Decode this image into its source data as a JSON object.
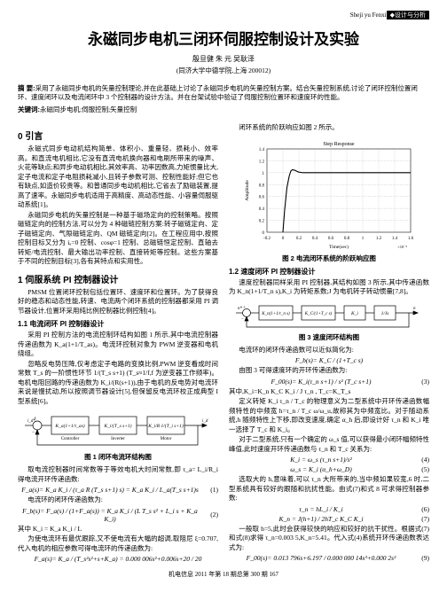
{
  "header_tag": {
    "left": "Sheji yu Fenxi",
    "right": "◆设计与分析"
  },
  "title": "永磁同步电机三闭环伺服控制设计及实验",
  "authors": "殷旦健  朱 元  吴耿泽",
  "affiliation": "(同济大学中德学院,上海 200012)",
  "abstract_label": "摘 要:",
  "abstract_text": "采用了永磁同步电机的矢量控制理论,并在此基础上讨论了永磁同步电机的矢量控制方案。结合矢量控制系统,讨论了闭环控制位置闭环、速度闭环以及电流闭环中 3 个控制器的设计方法。并在台架试验中验证了伺服控制位置环和速度环的性能。",
  "keywords_label": "关键词:",
  "keywords_text": "永磁同步电机;伺服控制;矢量控制",
  "sec0_title": "0 引言",
  "sec0_p1": "永磁式同步电动机结构简单、体积小、重量轻、损耗小、效率高。和直流电机相比,它没有直流电机换向器和电刷所带来的噪声、火花等缺点;和异步电动机相比,其效率高、功率因数高,力矩惯量比大,定子电流和定子电阻损耗减小,且转子参数可测、控制性能好;但它也有缺点,如造价较贵等。和普通同步电动机相比,它省去了励磁装置,提高了速率。永磁同步电机适用于高精度、高动态性能、小容量伺服驱动系统[1]。",
  "sec0_p2": "永磁同步电机的矢量控制是一种基于磁场定向的控制策略。按照磁链定向的控制方法,可以分为 4 种磁链控制方案:转子磁链定向、定子磁链定向、气隙磁链定向、QM 磁链定向[2]。在工程应用中,按照控制目标又分为 iₐ=0 控制、cosφ=1 控制、总磁链恒定控制、直轴去转矩/电流控制、最大输出功率控制、直接转矩等控制。这些方案基于不同的控制目标[3],各有其特点和实用性。",
  "sec1_title": "1 伺服系统 PI 控制器设计",
  "sec1_p1": "PMSM 位置闭环控制包括位置环、速度环和位置环。为了获得良好的稳态和动态性能,转速、电流两个闭环系统的控制器都采用 PI 调节器设计,位置环采用纯比例控制器比例控制[4]。",
  "sec1_1_title": "1.1 电流闭环 PI 控制器设计",
  "sec1_1_p1": "采用 PI 控制方法的电流控制环结构如图 1 所示,其中电流控制器传递函数为 K_a(1+1/T_as)。电流环控制对象为 PWM 逆变器和电机绕组。",
  "sec1_1_p2": "忽略反电势压降,仅考虑定子电路的变换比例,PWM 逆变看成时间常数 T_s 的一阶惯性环节 1/(T_s s+1) (T_s≈1/f,f 为逆变器工作频率)。电机电阻回路的传递函数为 K_i/(R(s+1)),由于电机的反电势对电流环来说是慢扰动,所以按照调节器设计[5],但保留反电流环校正成典型 I 型系统[6]。",
  "fig1_cap": "图 1 闭环电流环结构图",
  "sec1_1_p3": "取电流控制器时间常数等于等效电机大时间常数,即 τ_a= L_i/R_i 得电流开环传递函数:",
  "eq1": "F_a(s)= K_a K_i / (τ_a R (T_s s+1) s) = K_a K_i / L_a(T_s s+1)s",
  "eq1_num": "(1)",
  "sec1_1_p4": "电流环的闭环传递函数为:",
  "eq2": "F_b(s)= F_a(s) / (1+F_a(s)) = K_a K_i / (L T_s s² + L_i s + K_a K_i)",
  "eq2_num": "(2)",
  "sec1_1_p5": "其中 K_i = K_a K_i / L",
  "sec1_1_p6": "为使电流环有最优跟踪,又不使电流有大幅的超调,取阻尼 ξ=0.707,代入电机的相应参数可得电流环的传递函数为:",
  "eq3": "F_a(s)= K_a / (T_s²s²+s+K_a) = 0.000 006s²+0.006s+20 / 20",
  "col2_intro": "闭环系统的阶跃响应如图 2 所示。",
  "fig2_cap": "图 2 电流闭环系统的阶跃响应图",
  "fig2_chart": {
    "type": "line",
    "title_text": "Step Response",
    "xlabel": "Time(sec)",
    "ylabel": "Amplitude",
    "xlim": [
      -0.2,
      1.6
    ],
    "ylim": [
      0,
      1.4
    ],
    "xticks": [
      -0.2,
      0,
      0.2,
      0.4,
      0.6,
      0.8,
      1,
      1.2,
      1.4,
      1.6
    ],
    "yticks": [
      0,
      0.2,
      0.4,
      0.6,
      0.8,
      1,
      1.2,
      1.4
    ],
    "line_color": "#000000",
    "background_color": "#ffffff",
    "grid_color": "#999999",
    "x_data": [
      0,
      0.02,
      0.05,
      0.08,
      0.1,
      0.12,
      0.15,
      0.18,
      0.2,
      0.25,
      0.3,
      0.35,
      0.4,
      0.5,
      0.6,
      0.8,
      1.0,
      1.2,
      1.4,
      1.6
    ],
    "y_data": [
      0,
      0.35,
      0.75,
      0.95,
      1.03,
      1.05,
      1.04,
      1.02,
      1.01,
      1.0,
      1.0,
      1.0,
      1.0,
      1.0,
      1.0,
      1.0,
      1.0,
      1.0,
      1.0,
      1.0
    ]
  },
  "sec1_2_title": "1.2 速度闭环 PI 控制器设计",
  "sec1_2_p1": "速度控制器同样采用 PI 控制器,其结构如图 3 所示,其中传递函数为 K_n(1+1/T_n s),K_i 为转矩系数;J 为电机转子转动惯量[7,8]。",
  "fig3_cap": "图 3 速度闭环结构图",
  "sec1_2_p2": "电流环的闭环传递函数可以近似简化为:",
  "eq4": "F_b(s)= K_C / (1+T_c s)",
  "sec1_2_p3": "由图 3 可得速度环的开环传递函数为:",
  "eq5": "F_00(s)= K_i(τ_n s+1) / s² (T_c s+1)",
  "eq5_num": "(3)",
  "sec1_2_p4": "其中,K_i=K_n K_C K_i / J τ_n , T_c=K_T_s",
  "sec1_2_p5": "定义转矩 K_i τ_n / T_c 的物理意义为二型系统中开环传递函数幅频特性的中频宽 h=τ_n / T_c ω/ω_u,故称其为中频宽比。对于随动系统,h 随频特性上下移,即改变速度,确定 α_h 后,即设计好 τ_n 和 K_i 唯一选择了 T_c 和 K_i。",
  "sec1_2_p6": "对于二型系统,只有一个确定的 ω_s 值,可以获得最小闭环幅频特性峰值,此时速度开环传递函数与 τ_n 和 T_c 关系为:",
  "eq6": "K_i = ω_s (τ_n s+1)/s²",
  "eq6_num": "(4)",
  "eq6b": "ω_s = K_i (α_h+ω_D)",
  "eq6b_num": "(5)",
  "sec1_2_p7": "选取大的 h,意味着,可以 τ_n 大所带来的,当中频如果较宽,6 时,二型系统具有较好的跟随和抗扰性能。由式(7)和式 8 可求得控制器参数:",
  "eq7": "τ_n = hL_i / K_i",
  "eq7_num": "(6)",
  "eq8": "K_n = J(h+1) / 2hT_c K_C K_i",
  "eq8_num": "(7)",
  "sec1_2_p8": "一般取 h=5,此时会获得较快的响应和较好的抗干扰性。根据式(7)和式(8)求得 τ_n=0.003 5,K_n=5.41。代入式(4)系统开环传递函数表达式为:",
  "eq9": "F_00(s)= 0.013 796s+6.197 / 0.000 000 14s³+0.000 2s²",
  "eq9_num": "(9)",
  "fig1_diagram": {
    "blocks": [
      {
        "label": "K_a(1+1/τ_as)",
        "sublabel": "Controller"
      },
      {
        "label": "K_i/(T_s s+1)",
        "sublabel": "Inverter"
      },
      {
        "label": "K_i/R/(T_i s+1)",
        "sublabel": "Motor"
      }
    ],
    "line_color": "#000000"
  },
  "fig3_diagram": {
    "blocks": [
      {
        "label": "K_n(1+1/τ_n s)"
      },
      {
        "label": "K_C/(1+T_c s)"
      },
      {
        "label": "K_i"
      },
      {
        "label": "1/Js"
      }
    ],
    "line_color": "#000000"
  },
  "footer": "机电信息  2011 年第 18 期总第 300 期  167"
}
